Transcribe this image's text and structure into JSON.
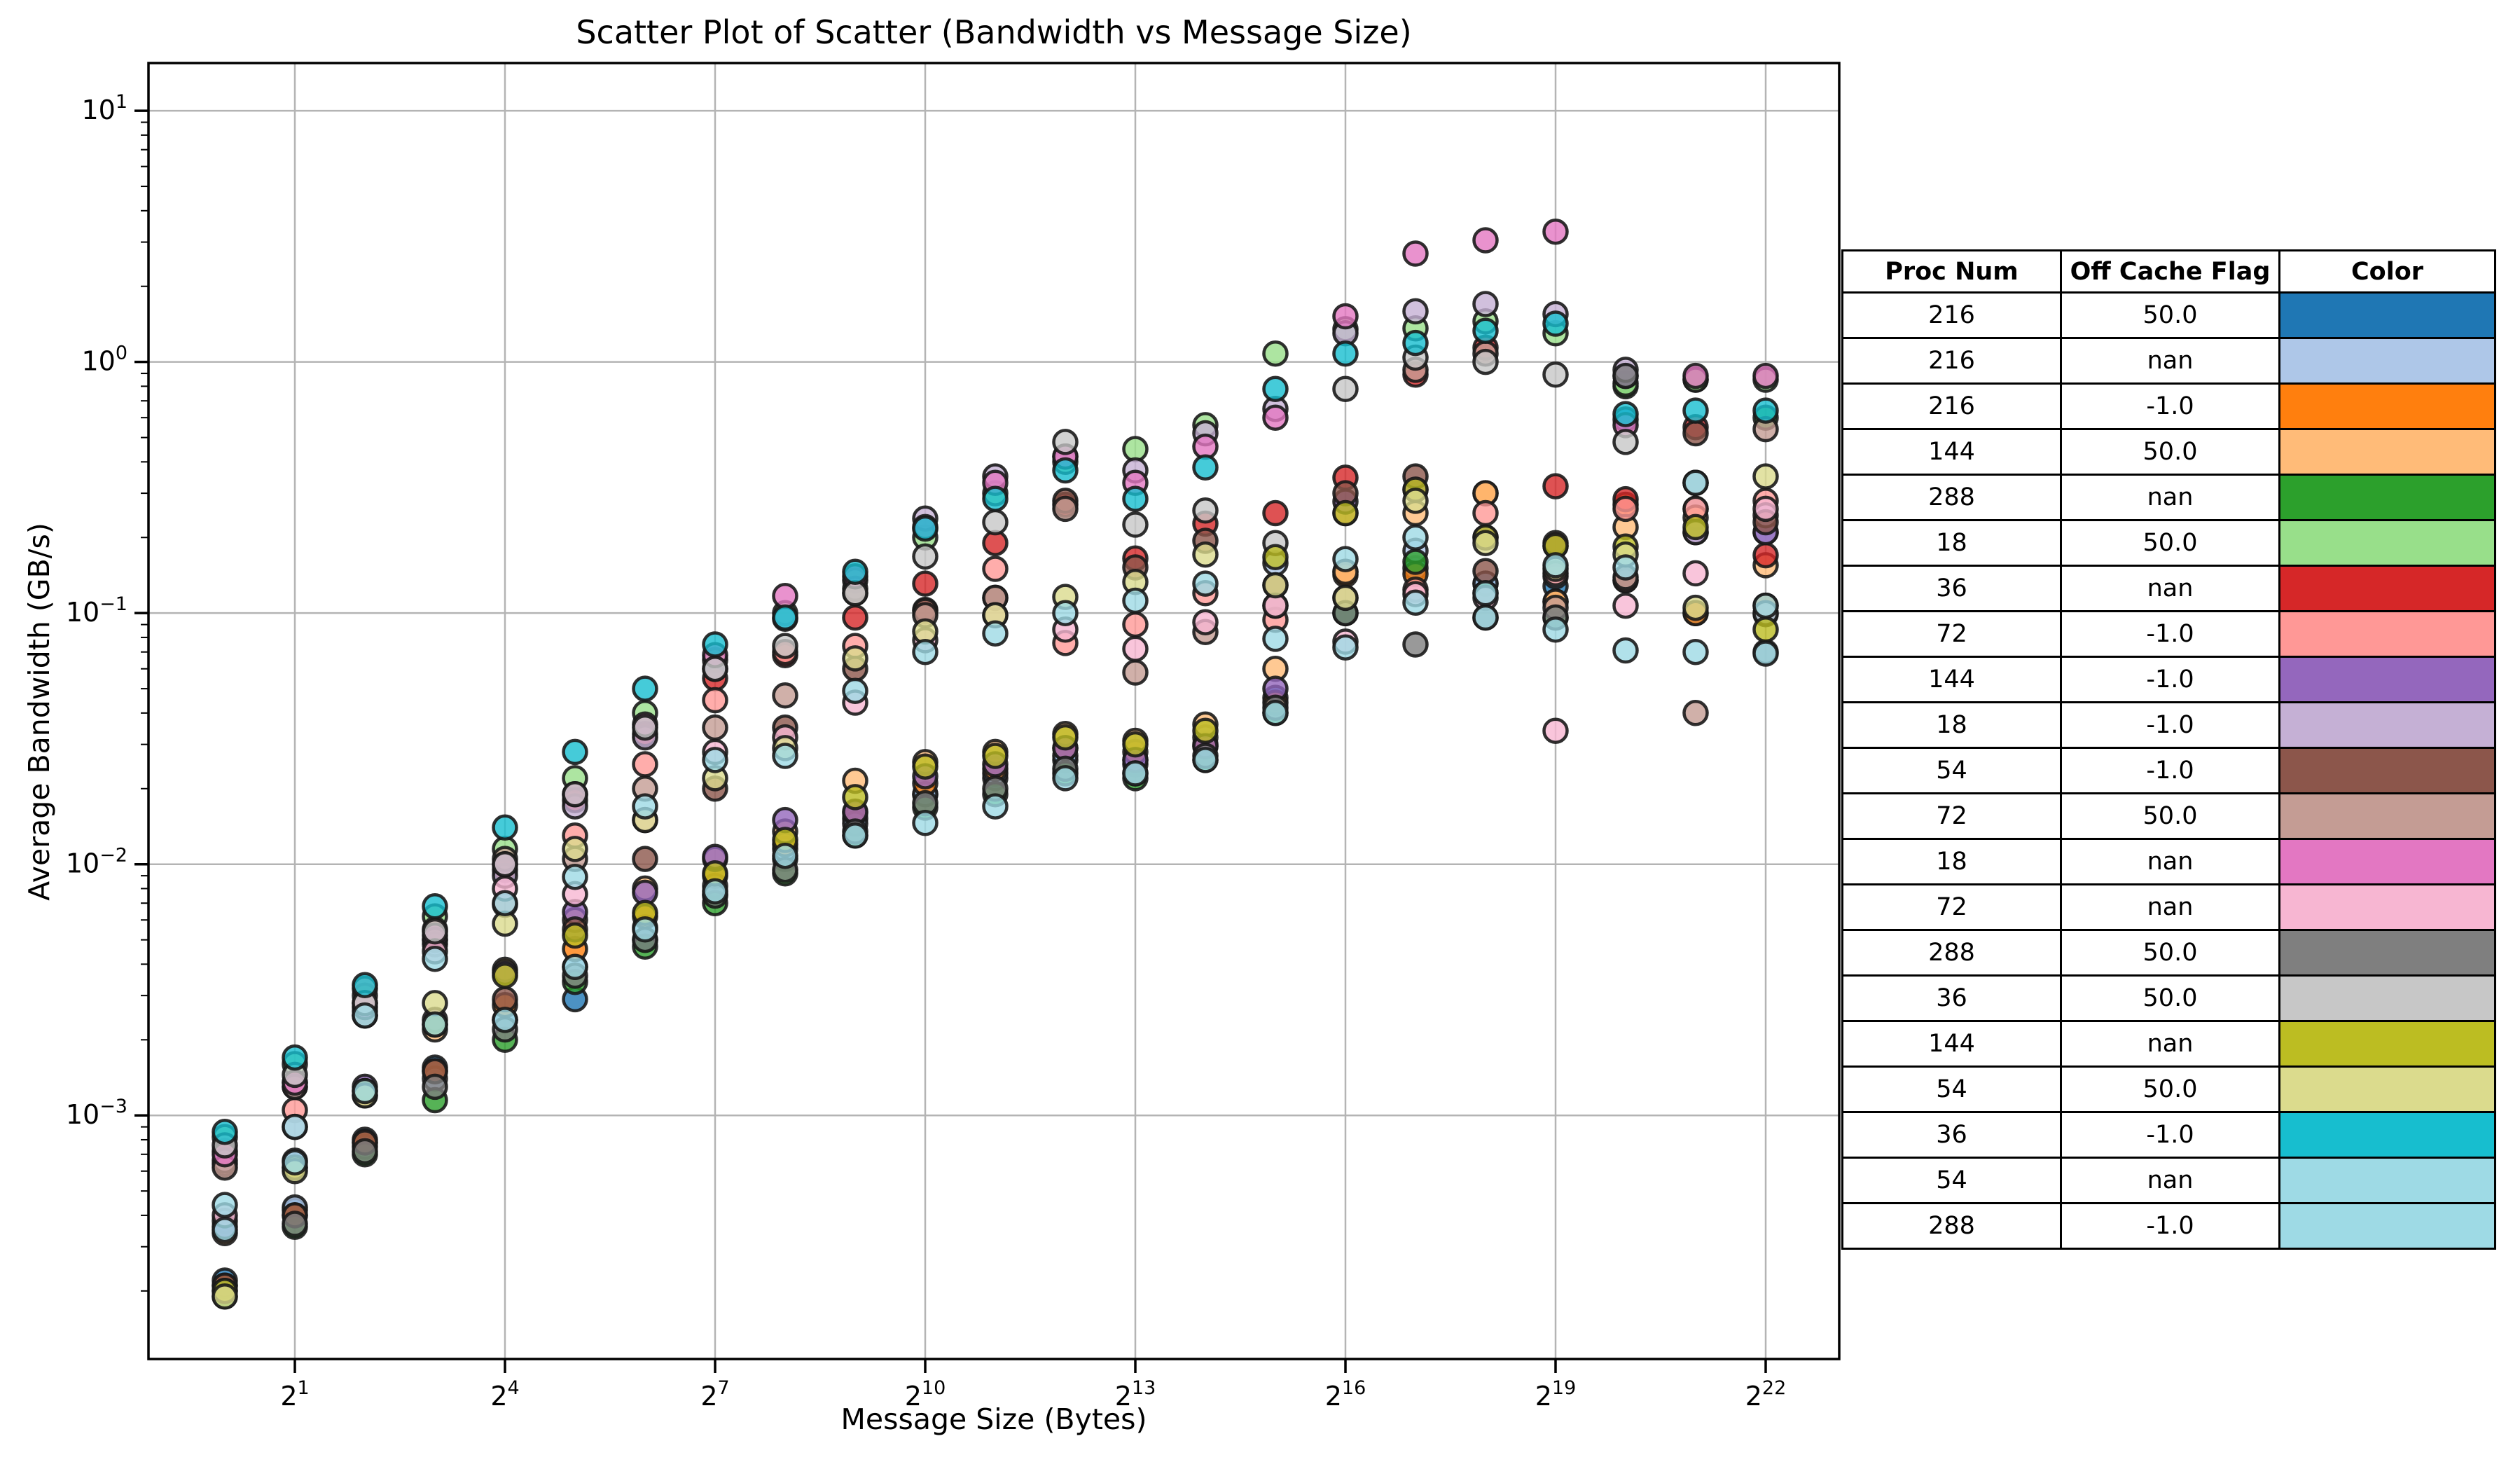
{
  "figure": {
    "title": "Scatter Plot of Scatter (Bandwidth vs Message Size)",
    "xlabel": "Message Size (Bytes)",
    "ylabel": "Average Bandwidth (GB/s)"
  },
  "axes": {
    "x_tick_base": "2",
    "x_tick_exponents": [
      1,
      4,
      7,
      10,
      13,
      16,
      19,
      22
    ],
    "y_tick_base": "10",
    "y_tick_exponents": [
      1,
      0,
      -1,
      -2,
      -3
    ],
    "xlim_log2": [
      -1.09,
      23.05
    ],
    "ylim_log10": [
      -3.97,
      1.19
    ],
    "grid": true
  },
  "legend_table": {
    "headers": [
      "Proc Num",
      "Off Cache Flag",
      "Color"
    ]
  },
  "style": {
    "grid_color": "#b4b4b4",
    "spine_color": "#000000",
    "marker_edge_color": "#1a1a1a",
    "marker_alpha": 0.8,
    "background": "#ffffff"
  },
  "chart_data": {
    "type": "scatter",
    "xscale": "log2",
    "yscale": "log10",
    "x_values": [
      1,
      2,
      4,
      8,
      16,
      32,
      64,
      128,
      256,
      512,
      1024,
      2048,
      4096,
      8192,
      16384,
      32768,
      65536,
      131072,
      262144,
      524288,
      1048576,
      2097152,
      4194304
    ],
    "series": [
      {
        "proc_num": "216",
        "off_cache_flag": "50.0",
        "color": "#1f77b4",
        "y": [
          0.00022,
          0.00042,
          0.0008,
          0.00155,
          0.0024,
          0.0029,
          0.005,
          0.0076,
          0.0105,
          0.0152,
          0.019,
          0.022,
          0.026,
          0.025,
          0.03,
          0.046,
          0.1,
          0.151,
          0.131,
          0.128,
          0.59,
          0.1,
          0.099
        ]
      },
      {
        "proc_num": "216",
        "off_cache_flag": "nan",
        "color": "#aec7e8",
        "y": [
          0.00038,
          0.00043,
          0.00075,
          0.0014,
          0.0024,
          0.0039,
          0.0056,
          0.0082,
          0.0115,
          0.0145,
          0.019,
          0.023,
          0.027,
          0.026,
          0.032,
          0.158,
          0.146,
          0.177,
          0.131,
          0.14,
          0.135,
          0.26,
          0.21
        ]
      },
      {
        "proc_num": "216",
        "off_cache_flag": "-1.0",
        "color": "#ff7f0e",
        "y": [
          0.00021,
          0.0004,
          0.00078,
          0.0015,
          0.00275,
          0.0046,
          0.0062,
          0.009,
          0.012,
          0.016,
          0.021,
          0.024,
          0.029,
          0.028,
          0.0295,
          0.044,
          0.142,
          0.143,
          0.3,
          0.111,
          0.27,
          0.1,
          0.107
        ]
      },
      {
        "proc_num": "144",
        "off_cache_flag": "50.0",
        "color": "#ffbb78",
        "y": [
          0.00034,
          0.00062,
          0.0012,
          0.0022,
          0.0038,
          0.006,
          0.008,
          0.0105,
          0.0135,
          0.0215,
          0.0255,
          0.028,
          0.033,
          0.031,
          0.036,
          0.06,
          0.146,
          0.25,
          0.3,
          0.111,
          0.22,
          0.24,
          0.155
        ]
      },
      {
        "proc_num": "288",
        "off_cache_flag": "nan",
        "color": "#2ca02c",
        "y": [
          0.00019,
          0.00036,
          0.0007,
          0.00115,
          0.002,
          0.0034,
          0.0047,
          0.007,
          0.0092,
          0.013,
          0.0168,
          0.019,
          0.023,
          0.022,
          0.026,
          0.04,
          0.1,
          0.16,
          0.12,
          0.096,
          0.8,
          0.85,
          0.6
        ]
      },
      {
        "proc_num": "18",
        "off_cache_flag": "50.0",
        "color": "#98df8a",
        "y": [
          0.00082,
          0.0016,
          0.003,
          0.0062,
          0.0115,
          0.022,
          0.04,
          0.065,
          0.1,
          0.135,
          0.2,
          0.3,
          0.4,
          0.45,
          0.56,
          1.08,
          1.35,
          1.36,
          1.45,
          1.3,
          0.82,
          0.85,
          0.85
        ]
      },
      {
        "proc_num": "36",
        "off_cache_flag": "nan",
        "color": "#d62728",
        "y": [
          0.00072,
          0.00135,
          0.0026,
          0.005,
          0.0095,
          0.018,
          0.033,
          0.055,
          0.068,
          0.096,
          0.131,
          0.19,
          0.27,
          0.165,
          0.227,
          0.25,
          0.346,
          0.89,
          1.14,
          0.32,
          0.284,
          0.55,
          0.17
        ]
      },
      {
        "proc_num": "72",
        "off_cache_flag": "-1.0",
        "color": "#ff9896",
        "y": [
          0.00064,
          0.00105,
          0.0032,
          0.0055,
          0.0069,
          0.013,
          0.025,
          0.045,
          0.07,
          0.074,
          0.103,
          0.15,
          0.076,
          0.09,
          0.12,
          0.094,
          0.25,
          0.124,
          0.25,
          0.144,
          0.26,
          0.26,
          0.28
        ]
      },
      {
        "proc_num": "144",
        "off_cache_flag": "-1.0",
        "color": "#9467bd",
        "y": [
          0.00036,
          0.00066,
          0.0013,
          0.0024,
          0.0037,
          0.00645,
          0.0077,
          0.0107,
          0.015,
          0.0162,
          0.0224,
          0.025,
          0.029,
          0.026,
          0.0295,
          0.05,
          0.278,
          0.31,
          0.2,
          0.185,
          0.88,
          0.21,
          0.21
        ]
      },
      {
        "proc_num": "18",
        "off_cache_flag": "-1.0",
        "color": "#c5b0d5",
        "y": [
          0.00066,
          0.0013,
          0.0025,
          0.0048,
          0.009,
          0.017,
          0.032,
          0.06,
          0.095,
          0.125,
          0.238,
          0.35,
          0.42,
          0.37,
          0.52,
          0.65,
          1.3,
          1.59,
          1.7,
          1.55,
          0.93,
          0.21,
          0.245
        ]
      },
      {
        "proc_num": "54",
        "off_cache_flag": "-1.0",
        "color": "#8c564b",
        "y": [
          0.00021,
          0.0004,
          0.00078,
          0.0015,
          0.0029,
          0.0055,
          0.0105,
          0.02,
          0.035,
          0.06,
          0.102,
          0.115,
          0.28,
          0.152,
          0.194,
          0.129,
          0.3,
          0.35,
          0.147,
          0.19,
          0.135,
          0.52,
          0.23
        ]
      },
      {
        "proc_num": "72",
        "off_cache_flag": "50.0",
        "color": "#c49c94",
        "y": [
          0.00062,
          0.0013,
          0.0025,
          0.005,
          0.0105,
          0.0105,
          0.02,
          0.035,
          0.047,
          0.12,
          0.098,
          0.115,
          0.26,
          0.058,
          0.084,
          0.107,
          0.115,
          0.93,
          1.08,
          0.105,
          0.139,
          0.04,
          0.54
        ]
      },
      {
        "proc_num": "18",
        "off_cache_flag": "nan",
        "color": "#e377c2",
        "y": [
          0.0007,
          0.00135,
          0.0027,
          0.0052,
          0.01,
          0.019,
          0.036,
          0.068,
          0.117,
          0.14,
          0.22,
          0.33,
          0.42,
          0.33,
          0.46,
          0.6,
          1.52,
          2.7,
          3.05,
          3.3,
          0.56,
          0.88,
          0.88
        ]
      },
      {
        "proc_num": "72",
        "off_cache_flag": "nan",
        "color": "#f7b6d2",
        "y": [
          0.0004,
          0.0009,
          0.0028,
          0.0045,
          0.008,
          0.0076,
          0.015,
          0.028,
          0.032,
          0.044,
          0.078,
          0.098,
          0.086,
          0.072,
          0.092,
          0.107,
          0.077,
          0.119,
          0.115,
          0.034,
          0.107,
          0.144,
          0.26
        ]
      },
      {
        "proc_num": "288",
        "off_cache_flag": "50.0",
        "color": "#7f7f7f",
        "y": [
          0.0002,
          0.00037,
          0.00072,
          0.0013,
          0.0022,
          0.0036,
          0.005,
          0.0075,
          0.0095,
          0.0135,
          0.0175,
          0.02,
          0.024,
          0.023,
          0.027,
          0.042,
          0.1,
          0.075,
          0.096,
          0.096,
          0.88,
          0.33,
          0.07
        ]
      },
      {
        "proc_num": "36",
        "off_cache_flag": "50.0",
        "color": "#c7c7c7",
        "y": [
          0.00076,
          0.00145,
          0.0028,
          0.0054,
          0.01,
          0.019,
          0.035,
          0.06,
          0.074,
          0.12,
          0.168,
          0.23,
          0.48,
          0.225,
          0.256,
          0.19,
          0.78,
          1.04,
          1.0,
          0.89,
          0.48,
          0.33,
          0.1
        ]
      },
      {
        "proc_num": "144",
        "off_cache_flag": "nan",
        "color": "#bcbd22",
        "y": [
          0.0002,
          0.00062,
          0.00125,
          0.0023,
          0.0036,
          0.0052,
          0.0064,
          0.0092,
          0.0125,
          0.0185,
          0.0245,
          0.027,
          0.032,
          0.03,
          0.034,
          0.167,
          0.25,
          0.31,
          0.2,
          0.185,
          0.184,
          0.22,
          0.086
        ]
      },
      {
        "proc_num": "54",
        "off_cache_flag": "50.0",
        "color": "#dbdb8d",
        "y": [
          0.00019,
          0.0006,
          0.0012,
          0.0028,
          0.0058,
          0.0115,
          0.015,
          0.022,
          0.029,
          0.066,
          0.0845,
          0.098,
          0.116,
          0.133,
          0.171,
          0.129,
          0.115,
          0.28,
          0.19,
          0.15,
          0.171,
          0.105,
          0.35
        ]
      },
      {
        "proc_num": "36",
        "off_cache_flag": "-1.0",
        "color": "#17becf",
        "y": [
          0.00086,
          0.0017,
          0.0033,
          0.0068,
          0.014,
          0.028,
          0.05,
          0.075,
          0.096,
          0.146,
          0.217,
          0.285,
          0.37,
          0.285,
          0.38,
          0.78,
          1.08,
          1.19,
          1.33,
          1.42,
          0.62,
          0.64,
          0.64
        ]
      },
      {
        "proc_num": "54",
        "off_cache_flag": "nan",
        "color": "#9edae5",
        "y": [
          0.00044,
          0.0009,
          0.0025,
          0.0042,
          0.007,
          0.0089,
          0.017,
          0.026,
          0.027,
          0.049,
          0.07,
          0.083,
          0.1,
          0.112,
          0.131,
          0.079,
          0.164,
          0.2,
          0.096,
          0.086,
          0.071,
          0.07,
          0.107
        ]
      },
      {
        "proc_num": "288",
        "off_cache_flag": "-1.0",
        "color": "#9edae5",
        "y": [
          0.00035,
          0.00065,
          0.00125,
          0.0023,
          0.0024,
          0.0039,
          0.0055,
          0.0078,
          0.0108,
          0.013,
          0.0146,
          0.017,
          0.022,
          0.023,
          0.026,
          0.04,
          0.073,
          0.11,
          0.12,
          0.155,
          0.152,
          0.33,
          0.069
        ]
      }
    ]
  }
}
